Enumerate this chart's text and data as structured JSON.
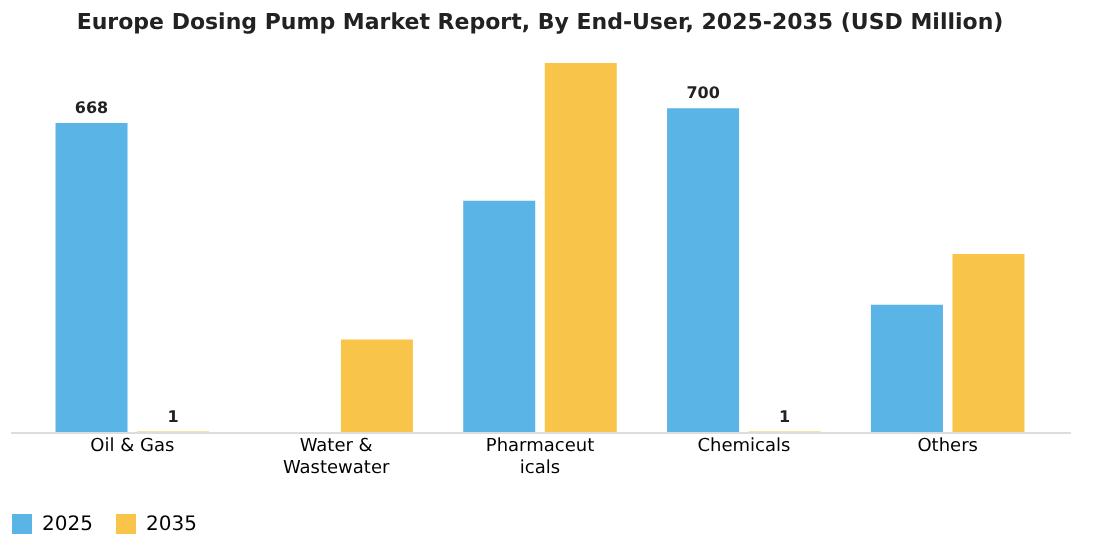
{
  "chart_data": {
    "type": "bar",
    "title": "Europe Dosing Pump Market Report, By End-User, 2025-2035 (USD Million)",
    "categories": [
      "Oil & Gas",
      "Water & Wastewater",
      "Pharmaceuticals",
      "Chemicals",
      "Others"
    ],
    "series": [
      {
        "name": "2025",
        "color": "#5ab4e5",
        "values": [
          668,
          null,
          500,
          700,
          275
        ],
        "value_labels": [
          "668",
          null,
          null,
          "700",
          null
        ]
      },
      {
        "name": "2035",
        "color": "#f8c44a",
        "values": [
          1,
          200,
          798,
          1,
          385
        ],
        "value_labels": [
          "1",
          null,
          null,
          "1",
          null
        ]
      }
    ],
    "legend": "bottom",
    "grid": false
  }
}
